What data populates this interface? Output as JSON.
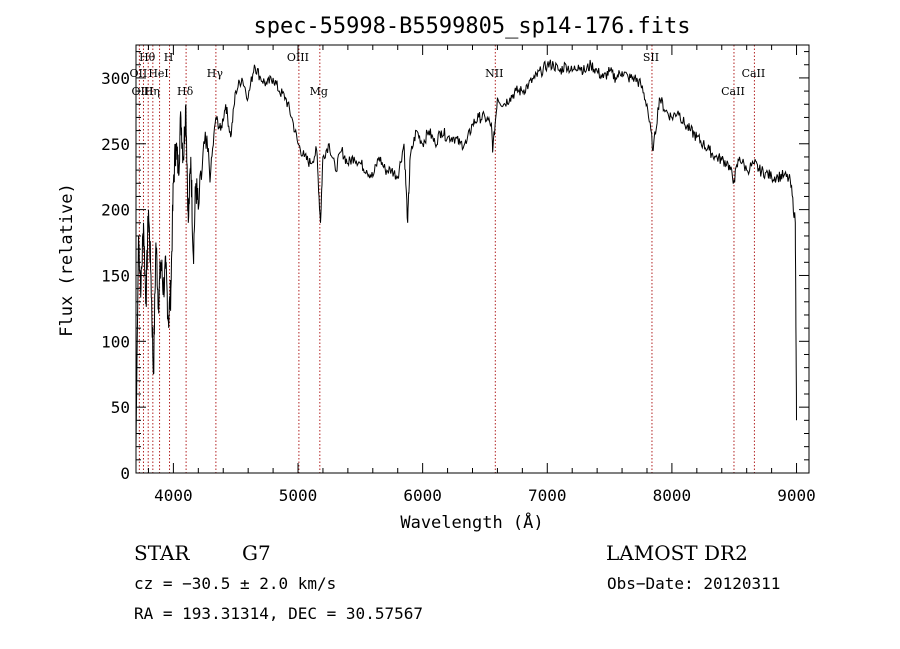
{
  "chart_data": {
    "type": "line",
    "title": "spec-55998-B5599805_sp14-176.fits",
    "xlabel": "Wavelength (Å)",
    "ylabel": "Flux (relative)",
    "xlim": [
      3700,
      9100
    ],
    "ylim": [
      0,
      325
    ],
    "xticks": [
      4000,
      5000,
      6000,
      7000,
      8000,
      9000
    ],
    "yticks": [
      0,
      50,
      100,
      150,
      200,
      250,
      300
    ],
    "line_color": "#000000",
    "marker_color": "#b22222",
    "series": [
      {
        "x": [
          3700,
          3720,
          3740,
          3760,
          3780,
          3800,
          3820,
          3840,
          3860,
          3880,
          3900,
          3920,
          3940,
          3960,
          3980,
          4000,
          4020,
          4040,
          4060,
          4080,
          4100,
          4120,
          4140,
          4160,
          4180,
          4200,
          4250,
          4300,
          4340,
          4380,
          4420,
          4460,
          4500,
          4550,
          4600,
          4650,
          4700,
          4750,
          4800,
          4850,
          4900,
          4950,
          5000,
          5050,
          5100,
          5150,
          5180,
          5200,
          5250,
          5300,
          5350,
          5400,
          5450,
          5500,
          5550,
          5600,
          5650,
          5700,
          5750,
          5800,
          5850,
          5880,
          5900,
          5950,
          6000,
          6050,
          6100,
          6150,
          6200,
          6250,
          6300,
          6350,
          6400,
          6450,
          6500,
          6550,
          6563,
          6600,
          6650,
          6700,
          6750,
          6800,
          6850,
          6900,
          6950,
          7000,
          7050,
          7100,
          7150,
          7200,
          7250,
          7300,
          7350,
          7400,
          7450,
          7500,
          7550,
          7600,
          7650,
          7700,
          7750,
          7800,
          7850,
          7900,
          7950,
          8000,
          8050,
          8100,
          8150,
          8200,
          8250,
          8300,
          8350,
          8400,
          8450,
          8498,
          8542,
          8600,
          8662,
          8700,
          8750,
          8800,
          8850,
          8900,
          8950,
          8990,
          9000
        ],
        "y": [
          20,
          180,
          140,
          190,
          130,
          200,
          150,
          75,
          175,
          130,
          160,
          140,
          155,
          115,
          140,
          220,
          250,
          230,
          270,
          240,
          280,
          190,
          240,
          165,
          220,
          200,
          250,
          230,
          270,
          260,
          280,
          255,
          290,
          300,
          285,
          310,
          300,
          295,
          300,
          290,
          285,
          270,
          250,
          240,
          235,
          245,
          190,
          240,
          250,
          230,
          245,
          235,
          240,
          235,
          230,
          225,
          240,
          230,
          230,
          225,
          250,
          190,
          240,
          260,
          250,
          260,
          250,
          260,
          255,
          255,
          250,
          250,
          265,
          270,
          270,
          265,
          245,
          285,
          280,
          285,
          290,
          290,
          295,
          300,
          305,
          310,
          310,
          305,
          310,
          305,
          310,
          305,
          310,
          305,
          300,
          305,
          300,
          305,
          300,
          300,
          295,
          280,
          245,
          285,
          275,
          270,
          275,
          265,
          260,
          255,
          250,
          245,
          240,
          238,
          235,
          222,
          240,
          230,
          235,
          230,
          228,
          225,
          225,
          226,
          222,
          190,
          40
        ]
      }
    ],
    "spectral_lines": [
      {
        "label": "Hθ",
        "wavelength": 3798
      },
      {
        "label": "OII",
        "wavelength": 3727
      },
      {
        "label": "OIII",
        "wavelength": 3760
      },
      {
        "label": "Hη",
        "wavelength": 3835
      },
      {
        "label": "HeI",
        "wavelength": 3889
      },
      {
        "label": "H",
        "wavelength": 3969
      },
      {
        "label": "Hδ",
        "wavelength": 4102
      },
      {
        "label": "Hγ",
        "wavelength": 4341
      },
      {
        "label": "OIII",
        "wavelength": 5007
      },
      {
        "label": "Mg",
        "wavelength": 5175
      },
      {
        "label": "NII",
        "wavelength": 6583
      },
      {
        "label": "SII",
        "wavelength": 7840
      },
      {
        "label": "CaII",
        "wavelength": 8498
      },
      {
        "label": "CaII",
        "wavelength": 8662
      }
    ]
  },
  "info": {
    "object_class": "STAR",
    "subclass": "G7",
    "survey": "LAMOST DR2",
    "redshift": "cz = −30.5 ± 2.0 km/s",
    "obs_date": "Obs−Date: 20120311",
    "coords": "RA = 193.31314, DEC =  30.57567"
  }
}
